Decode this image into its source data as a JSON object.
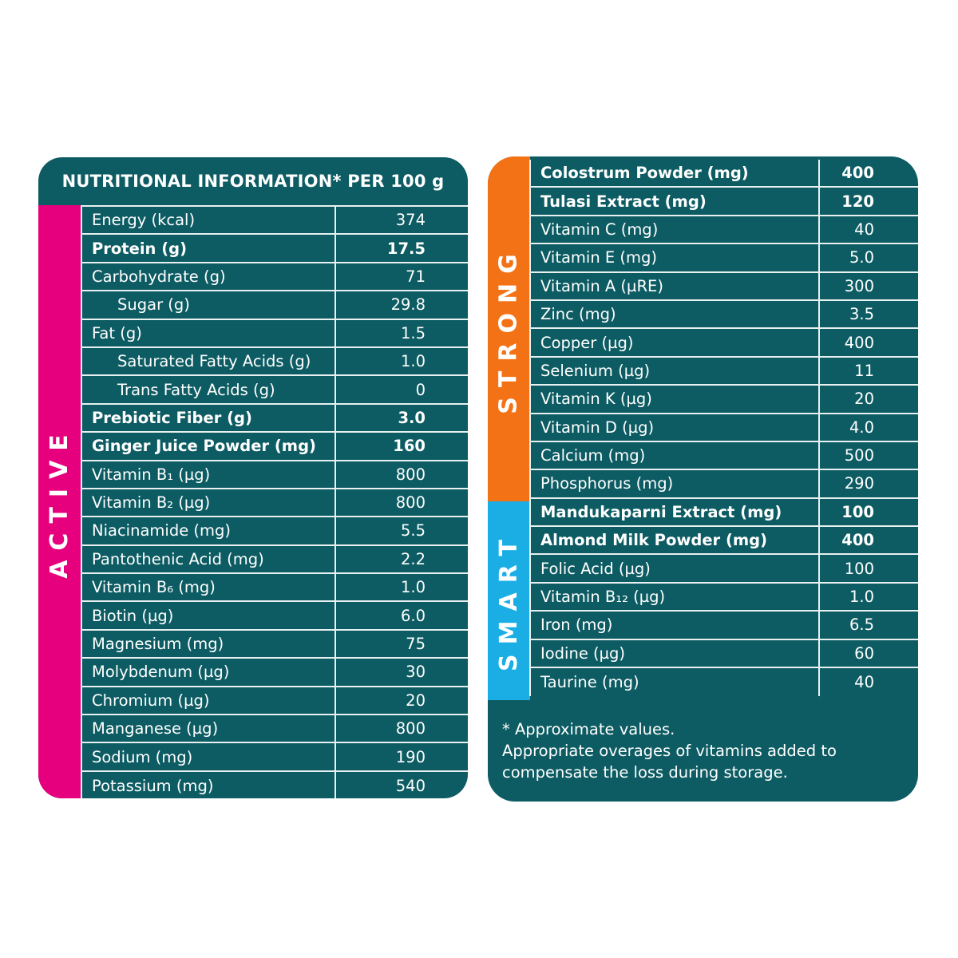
{
  "colors": {
    "panel": "#0d5c63",
    "active": "#e6007e",
    "strong": "#f47216",
    "smart": "#1aaee5"
  },
  "title": "NUTRITIONAL INFORMATION* PER 100 g",
  "sections": {
    "active": "ACTIVE",
    "strong": "STRONG",
    "smart": "SMART"
  },
  "left_rows": [
    {
      "label": "Energy (kcal)",
      "value": "374"
    },
    {
      "label": "Protein (g)",
      "value": "17.5",
      "bold": true
    },
    {
      "label": "Carbohydrate (g)",
      "value": "71"
    },
    {
      "label": "Sugar (g)",
      "value": "29.8",
      "indent": true
    },
    {
      "label": "Fat (g)",
      "value": "1.5"
    },
    {
      "label": "Saturated Fatty Acids (g)",
      "value": "1.0",
      "indent": true
    },
    {
      "label": "Trans Fatty Acids (g)",
      "value": "0",
      "indent": true
    },
    {
      "label": "Prebiotic Fiber (g)",
      "value": "3.0",
      "bold": true
    },
    {
      "label": "Ginger Juice Powder (mg)",
      "value": "160",
      "bold": true
    },
    {
      "label": "Vitamin B₁ (µg)",
      "value": "800"
    },
    {
      "label": "Vitamin B₂ (µg)",
      "value": "800"
    },
    {
      "label": "Niacinamide (mg)",
      "value": "5.5"
    },
    {
      "label": "Pantothenic Acid (mg)",
      "value": "2.2"
    },
    {
      "label": "Vitamin B₆ (mg)",
      "value": "1.0"
    },
    {
      "label": "Biotin (µg)",
      "value": "6.0"
    },
    {
      "label": "Magnesium (mg)",
      "value": "75"
    },
    {
      "label": "Molybdenum (µg)",
      "value": "30"
    },
    {
      "label": "Chromium (µg)",
      "value": "20"
    },
    {
      "label": "Manganese (µg)",
      "value": "800"
    },
    {
      "label": "Sodium (mg)",
      "value": "190"
    },
    {
      "label": "Potassium (mg)",
      "value": "540"
    }
  ],
  "right_rows": [
    {
      "label": "Colostrum Powder (mg)",
      "value": "400",
      "bold": true
    },
    {
      "label": "Tulasi Extract (mg)",
      "value": "120",
      "bold": true
    },
    {
      "label": "Vitamin C (mg)",
      "value": "40"
    },
    {
      "label": "Vitamin E (mg)",
      "value": "5.0"
    },
    {
      "label": "Vitamin A (µRE)",
      "value": "300"
    },
    {
      "label": "Zinc (mg)",
      "value": "3.5"
    },
    {
      "label": "Copper (µg)",
      "value": "400"
    },
    {
      "label": "Selenium (µg)",
      "value": "11"
    },
    {
      "label": "Vitamin K (µg)",
      "value": "20"
    },
    {
      "label": "Vitamin D (µg)",
      "value": "4.0"
    },
    {
      "label": "Calcium (mg)",
      "value": "500"
    },
    {
      "label": "Phosphorus (mg)",
      "value": "290"
    },
    {
      "label": "Mandukaparni Extract (mg)",
      "value": "100",
      "bold": true
    },
    {
      "label": "Almond Milk Powder (mg)",
      "value": "400",
      "bold": true
    },
    {
      "label": "Folic Acid (µg)",
      "value": "100"
    },
    {
      "label": "Vitamin B₁₂ (µg)",
      "value": "1.0"
    },
    {
      "label": "Iron (mg)",
      "value": "6.5"
    },
    {
      "label": "Iodine (µg)",
      "value": "60"
    },
    {
      "label": "Taurine (mg)",
      "value": "40"
    }
  ],
  "footer": {
    "line1": "* Approximate values.",
    "line2": "Appropriate overages of vitamins added to compensate the loss during storage."
  }
}
